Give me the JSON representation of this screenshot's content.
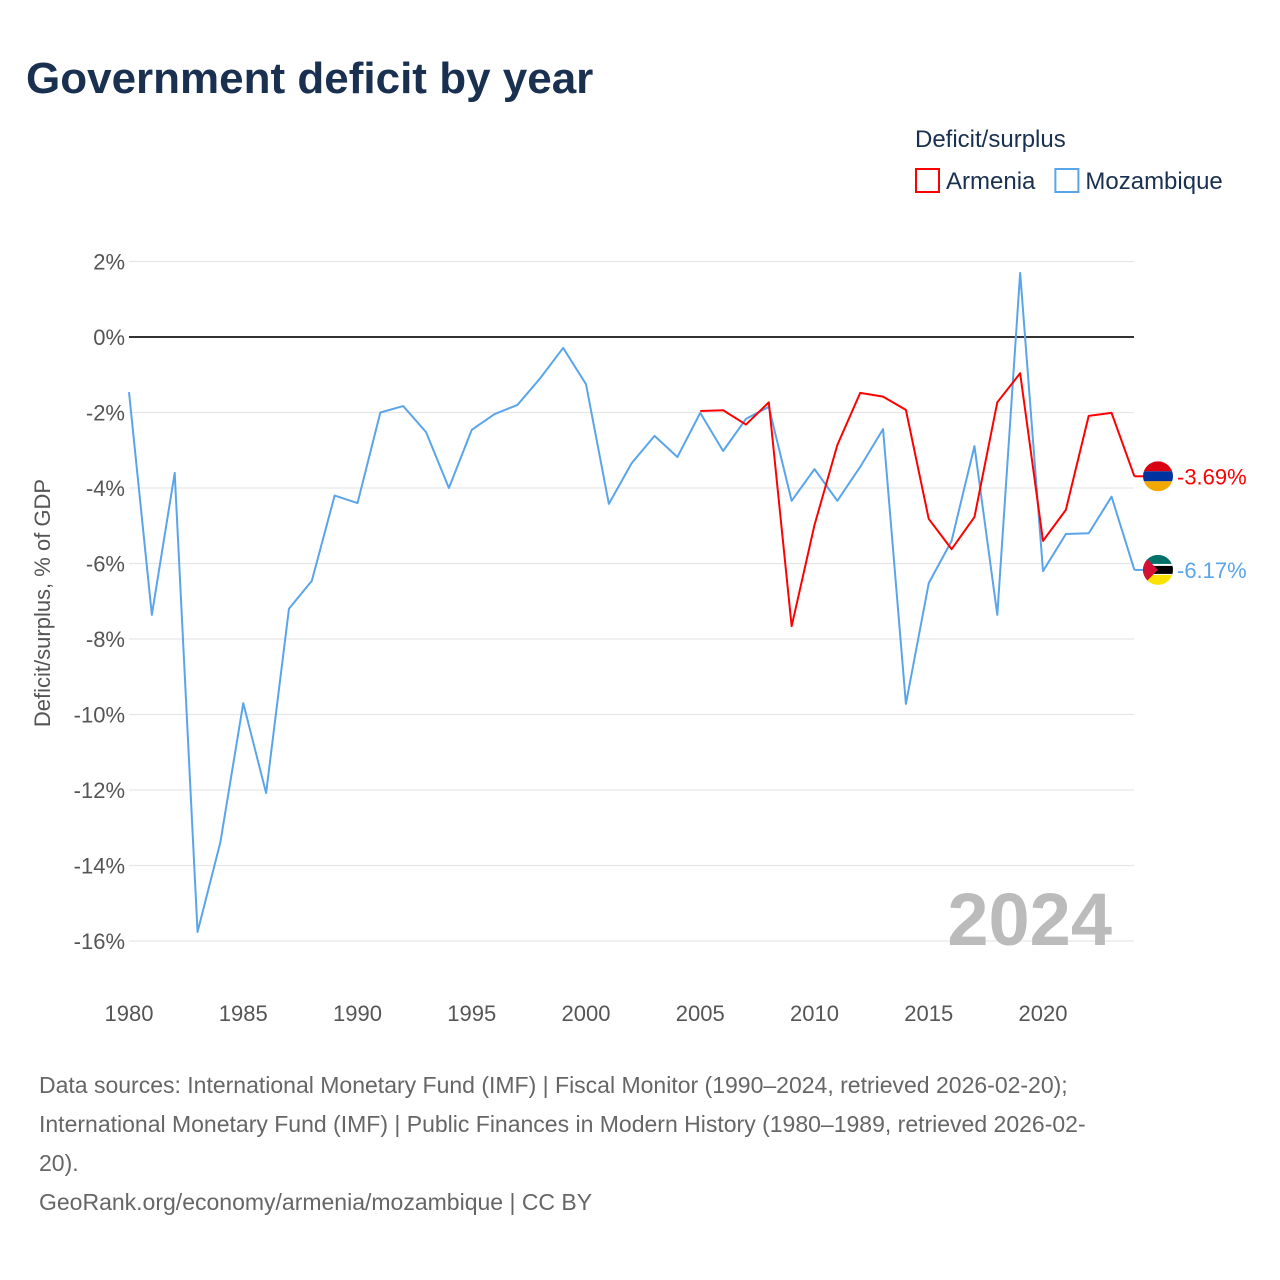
{
  "chart_data": {
    "type": "line",
    "title": "Government deficit by year",
    "legend_title": "Deficit/surplus",
    "legend_placement": "top-right",
    "ylabel": "Deficit/surplus, % of GDP",
    "xlabel": "",
    "ylim": [
      -17,
      2
    ],
    "xlim": [
      1980,
      2024
    ],
    "yticks": [
      2,
      0,
      -2,
      -4,
      -6,
      -8,
      -10,
      -12,
      -14,
      -16
    ],
    "ytick_labels": [
      "2%",
      "0%",
      "-2%",
      "-4%",
      "-6%",
      "-8%",
      "-10%",
      "-12%",
      "-14%",
      "-16%"
    ],
    "xticks": [
      1980,
      1985,
      1990,
      1995,
      2000,
      2005,
      2010,
      2015,
      2020
    ],
    "xtick_labels": [
      "1980",
      "1985",
      "1990",
      "1995",
      "2000",
      "2005",
      "2010",
      "2015",
      "2020"
    ],
    "grid": true,
    "year_watermark": "2024",
    "series": [
      {
        "name": "Armenia",
        "color": "#ff0000",
        "end_label": "-3.69%",
        "x": [
          2005,
          2006,
          2007,
          2008,
          2009,
          2010,
          2011,
          2012,
          2013,
          2014,
          2015,
          2016,
          2017,
          2018,
          2019,
          2020,
          2021,
          2022,
          2023,
          2024
        ],
        "values": [
          -1.96,
          -1.94,
          -2.32,
          -1.73,
          -7.66,
          -4.98,
          -2.86,
          -1.48,
          -1.58,
          -1.93,
          -4.82,
          -5.62,
          -4.77,
          -1.73,
          -0.96,
          -5.4,
          -4.58,
          -2.09,
          -2.01,
          -3.69
        ]
      },
      {
        "name": "Mozambique",
        "color": "#5aa5ea",
        "end_label": "-6.17%",
        "x": [
          1980,
          1981,
          1982,
          1983,
          1984,
          1985,
          1986,
          1987,
          1988,
          1989,
          1990,
          1991,
          1992,
          1993,
          1994,
          1995,
          1996,
          1997,
          1998,
          1999,
          2000,
          2001,
          2002,
          2003,
          2004,
          2005,
          2006,
          2007,
          2008,
          2009,
          2010,
          2011,
          2012,
          2013,
          2014,
          2015,
          2016,
          2017,
          2018,
          2019,
          2020,
          2021,
          2022,
          2023,
          2024
        ],
        "values": [
          -1.46,
          -7.36,
          -3.6,
          -15.76,
          -13.38,
          -9.7,
          -12.08,
          -7.2,
          -6.46,
          -4.2,
          -4.4,
          -2.0,
          -1.83,
          -2.52,
          -4.0,
          -2.46,
          -2.04,
          -1.8,
          -1.09,
          -0.29,
          -1.25,
          -4.42,
          -3.34,
          -2.62,
          -3.18,
          -2.01,
          -3.02,
          -2.17,
          -1.85,
          -4.34,
          -3.5,
          -4.34,
          -3.44,
          -2.44,
          -9.72,
          -6.52,
          -5.4,
          -2.89,
          -7.36,
          1.7,
          -6.2,
          -5.22,
          -5.2,
          -4.23,
          -6.17
        ]
      }
    ]
  },
  "footer": {
    "sources_line1": "Data sources: International Monetary Fund (IMF) | Fiscal Monitor (1990–2024, retrieved 2026-02-20);",
    "sources_line2": "International Monetary Fund (IMF) | Public Finances in Modern History (1980–1989, retrieved 2026-02-",
    "sources_line3": "20).",
    "credit": "GeoRank.org/economy/armenia/mozambique | CC BY"
  }
}
